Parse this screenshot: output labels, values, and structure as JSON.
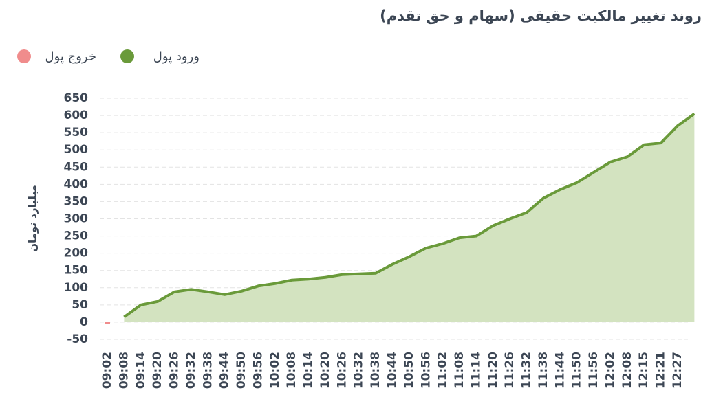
{
  "chart_data": {
    "type": "area",
    "title": "روند تغییر مالکیت حقیقی (سهام و حق تقدم)",
    "ylabel": "میلیارد تومان",
    "categories": [
      "09:02",
      "09:08",
      "09:14",
      "09:20",
      "09:26",
      "09:32",
      "09:38",
      "09:44",
      "09:50",
      "09:56",
      "10:02",
      "10:08",
      "10:14",
      "10:20",
      "10:26",
      "10:32",
      "10:38",
      "10:44",
      "10:50",
      "10:56",
      "11:02",
      "11:08",
      "11:14",
      "11:20",
      "11:26",
      "11:32",
      "11:38",
      "11:44",
      "11:50",
      "11:56",
      "12:02",
      "12:08",
      "12:15",
      "12:21",
      "12:27",
      null
    ],
    "series": [
      {
        "name": "ورود پول",
        "color": "#6a9a3a",
        "fill": "#d3e3c0",
        "values": [
          null,
          15,
          50,
          60,
          88,
          95,
          88,
          80,
          90,
          105,
          112,
          122,
          125,
          130,
          138,
          140,
          142,
          168,
          190,
          215,
          228,
          245,
          250,
          280,
          300,
          318,
          360,
          385,
          405,
          435,
          465,
          480,
          515,
          520,
          570,
          605
        ]
      },
      {
        "name": "خروج پول",
        "color": "#f08c8c",
        "fill": "#f7c4c4",
        "values": [
          -5,
          null,
          null,
          null,
          null,
          null,
          null,
          null,
          null,
          null,
          null,
          null,
          null,
          null,
          null,
          null,
          null,
          null,
          null,
          null,
          null,
          null,
          null,
          null,
          null,
          null,
          null,
          null,
          null,
          null,
          null,
          null,
          null,
          null,
          null,
          null
        ]
      }
    ],
    "ylim": [
      -50,
      650
    ],
    "yticks": [
      -50,
      0,
      50,
      100,
      150,
      200,
      250,
      300,
      350,
      400,
      450,
      500,
      550,
      600,
      650
    ],
    "grid": true
  }
}
